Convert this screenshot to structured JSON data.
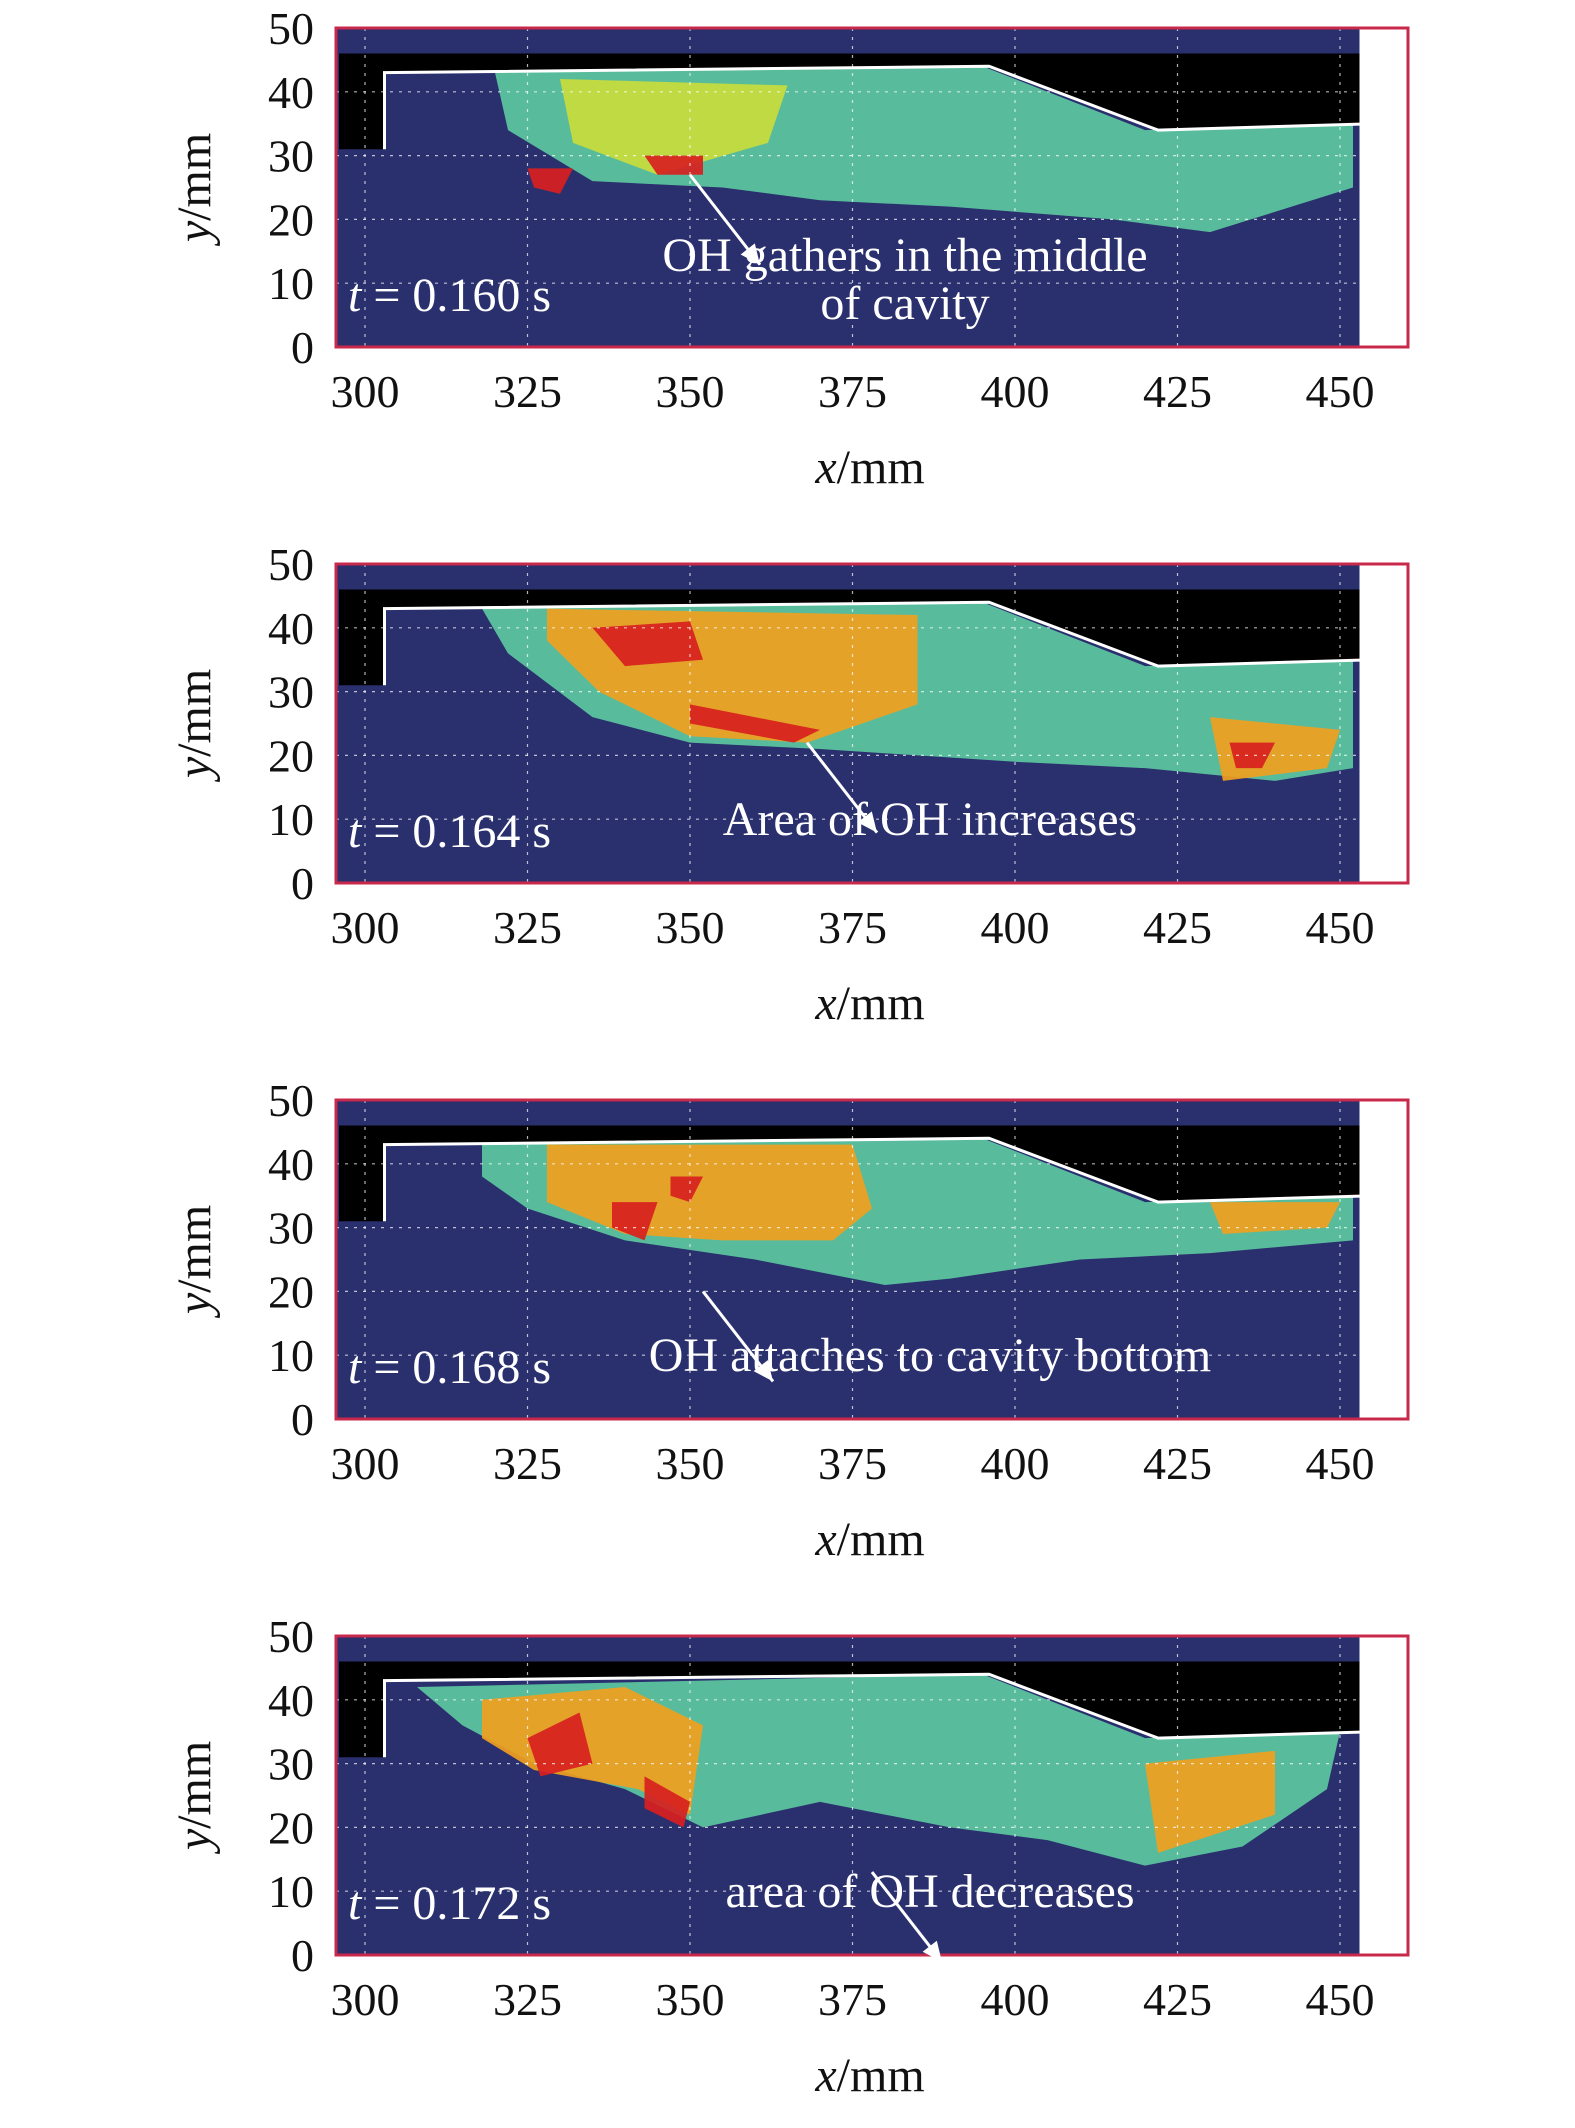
{
  "colors": {
    "frame": "#c8284a",
    "background": "#2a2f6e",
    "wall": "#000000",
    "cmap": [
      "#2a2f6e",
      "#2f58b8",
      "#3fa0d8",
      "#5cc9a0",
      "#c8dc3c",
      "#f0a020",
      "#d82020"
    ]
  },
  "chart_data": [
    {
      "type": "heatmap",
      "time_label": "t = 0.160 s",
      "annotation": [
        "OH gathers in the middle",
        "of cavity"
      ],
      "annotation_target": [
        350,
        27
      ],
      "xlabel_var": "x",
      "xlabel_unit": "/mm",
      "ylabel_var": "y",
      "ylabel_unit": "/mm",
      "xlim": [
        295,
        460
      ],
      "ylim": [
        0,
        50
      ],
      "xticks": [
        300,
        325,
        350,
        375,
        400,
        425,
        450
      ],
      "yticks": [
        0,
        10,
        20,
        30,
        40,
        50
      ],
      "grid": "dashed-white",
      "regions": [
        {
          "level": 0.45,
          "pts": [
            [
              320,
              43
            ],
            [
              395,
              44
            ],
            [
              400,
              42
            ],
            [
              420,
              34
            ],
            [
              452,
              35
            ],
            [
              452,
              25
            ],
            [
              430,
              18
            ],
            [
              415,
              20
            ],
            [
              390,
              22
            ],
            [
              370,
              23
            ],
            [
              355,
              25
            ],
            [
              335,
              26
            ],
            [
              322,
              34
            ]
          ]
        },
        {
          "level": 0.7,
          "pts": [
            [
              330,
              42
            ],
            [
              365,
              41
            ],
            [
              362,
              32
            ],
            [
              345,
              27
            ],
            [
              332,
              32
            ]
          ]
        },
        {
          "level": 0.95,
          "pts": [
            [
              343,
              30
            ],
            [
              352,
              30
            ],
            [
              352,
              27
            ],
            [
              345,
              27
            ]
          ]
        },
        {
          "level": 0.95,
          "pts": [
            [
              325,
              28
            ],
            [
              332,
              28
            ],
            [
              330,
              24
            ],
            [
              326,
              25
            ]
          ]
        }
      ]
    },
    {
      "type": "heatmap",
      "time_label": "t = 0.164 s",
      "annotation": [
        "Area of OH increases"
      ],
      "annotation_target": [
        368,
        22
      ],
      "xlabel_var": "x",
      "xlabel_unit": "/mm",
      "ylabel_var": "y",
      "ylabel_unit": "/mm",
      "xlim": [
        295,
        460
      ],
      "ylim": [
        0,
        50
      ],
      "xticks": [
        300,
        325,
        350,
        375,
        400,
        425,
        450
      ],
      "yticks": [
        0,
        10,
        20,
        30,
        40,
        50
      ],
      "grid": "dashed-white",
      "regions": [
        {
          "level": 0.45,
          "pts": [
            [
              318,
              43
            ],
            [
              395,
              44
            ],
            [
              400,
              42
            ],
            [
              420,
              34
            ],
            [
              452,
              35
            ],
            [
              452,
              18
            ],
            [
              440,
              16
            ],
            [
              420,
              18
            ],
            [
              400,
              19
            ],
            [
              385,
              20
            ],
            [
              370,
              21
            ],
            [
              350,
              22
            ],
            [
              335,
              26
            ],
            [
              322,
              36
            ]
          ]
        },
        {
          "level": 0.75,
          "pts": [
            [
              328,
              43
            ],
            [
              385,
              42
            ],
            [
              385,
              28
            ],
            [
              368,
              22
            ],
            [
              350,
              23
            ],
            [
              336,
              30
            ],
            [
              328,
              38
            ]
          ]
        },
        {
          "level": 0.75,
          "pts": [
            [
              430,
              26
            ],
            [
              450,
              24
            ],
            [
              448,
              18
            ],
            [
              432,
              16
            ]
          ]
        },
        {
          "level": 0.95,
          "pts": [
            [
              335,
              40
            ],
            [
              350,
              41
            ],
            [
              352,
              35
            ],
            [
              340,
              34
            ]
          ]
        },
        {
          "level": 0.95,
          "pts": [
            [
              350,
              28
            ],
            [
              370,
              24
            ],
            [
              366,
              22
            ],
            [
              350,
              25
            ]
          ]
        },
        {
          "level": 0.95,
          "pts": [
            [
              433,
              22
            ],
            [
              440,
              22
            ],
            [
              438,
              18
            ],
            [
              434,
              18
            ]
          ]
        }
      ]
    },
    {
      "type": "heatmap",
      "time_label": "t = 0.168 s",
      "annotation": [
        "OH attaches to cavity bottom"
      ],
      "annotation_target": [
        352,
        20
      ],
      "xlabel_var": "x",
      "xlabel_unit": "/mm",
      "ylabel_var": "y",
      "ylabel_unit": "/mm",
      "xlim": [
        295,
        460
      ],
      "ylim": [
        0,
        50
      ],
      "xticks": [
        300,
        325,
        350,
        375,
        400,
        425,
        450
      ],
      "yticks": [
        0,
        10,
        20,
        30,
        40,
        50
      ],
      "grid": "dashed-white",
      "regions": [
        {
          "level": 0.45,
          "pts": [
            [
              318,
              43
            ],
            [
              395,
              44
            ],
            [
              400,
              42
            ],
            [
              420,
              34
            ],
            [
              452,
              35
            ],
            [
              452,
              28
            ],
            [
              430,
              26
            ],
            [
              410,
              25
            ],
            [
              390,
              22
            ],
            [
              380,
              21
            ],
            [
              360,
              25
            ],
            [
              340,
              28
            ],
            [
              325,
              33
            ],
            [
              318,
              38
            ]
          ]
        },
        {
          "level": 0.75,
          "pts": [
            [
              328,
              43
            ],
            [
              375,
              43
            ],
            [
              378,
              33
            ],
            [
              372,
              28
            ],
            [
              355,
              28
            ],
            [
              340,
              29
            ],
            [
              328,
              34
            ]
          ]
        },
        {
          "level": 0.75,
          "pts": [
            [
              430,
              34
            ],
            [
              450,
              34
            ],
            [
              448,
              30
            ],
            [
              432,
              29
            ]
          ]
        },
        {
          "level": 0.95,
          "pts": [
            [
              338,
              34
            ],
            [
              345,
              34
            ],
            [
              343,
              28
            ],
            [
              338,
              30
            ]
          ]
        },
        {
          "level": 0.95,
          "pts": [
            [
              347,
              38
            ],
            [
              352,
              38
            ],
            [
              350,
              34
            ],
            [
              347,
              35
            ]
          ]
        }
      ]
    },
    {
      "type": "heatmap",
      "time_label": "t = 0.172 s",
      "annotation": [
        "area of OH decreases"
      ],
      "annotation_target": [
        378,
        13
      ],
      "xlabel_var": "x",
      "xlabel_unit": "/mm",
      "ylabel_var": "y",
      "ylabel_unit": "/mm",
      "xlim": [
        295,
        460
      ],
      "ylim": [
        0,
        50
      ],
      "xticks": [
        300,
        325,
        350,
        375,
        400,
        425,
        450
      ],
      "yticks": [
        0,
        10,
        20,
        30,
        40,
        50
      ],
      "grid": "dashed-white",
      "regions": [
        {
          "level": 0.45,
          "pts": [
            [
              308,
              42
            ],
            [
              395,
              44
            ],
            [
              400,
              42
            ],
            [
              420,
              34
            ],
            [
              450,
              35
            ],
            [
              448,
              26
            ],
            [
              435,
              17
            ],
            [
              420,
              14
            ],
            [
              405,
              18
            ],
            [
              390,
              20
            ],
            [
              370,
              24
            ],
            [
              352,
              20
            ],
            [
              340,
              26
            ],
            [
              326,
              30
            ],
            [
              315,
              36
            ]
          ]
        },
        {
          "level": 0.75,
          "pts": [
            [
              318,
              40
            ],
            [
              340,
              42
            ],
            [
              352,
              36
            ],
            [
              350,
              22
            ],
            [
              342,
              26
            ],
            [
              326,
              29
            ],
            [
              318,
              34
            ]
          ]
        },
        {
          "level": 0.75,
          "pts": [
            [
              420,
              30
            ],
            [
              440,
              32
            ],
            [
              440,
              22
            ],
            [
              422,
              16
            ]
          ]
        },
        {
          "level": 0.95,
          "pts": [
            [
              325,
              34
            ],
            [
              333,
              38
            ],
            [
              335,
              30
            ],
            [
              327,
              28
            ]
          ]
        },
        {
          "level": 0.95,
          "pts": [
            [
              343,
              28
            ],
            [
              350,
              24
            ],
            [
              349,
              20
            ],
            [
              343,
              23
            ]
          ]
        }
      ]
    }
  ]
}
